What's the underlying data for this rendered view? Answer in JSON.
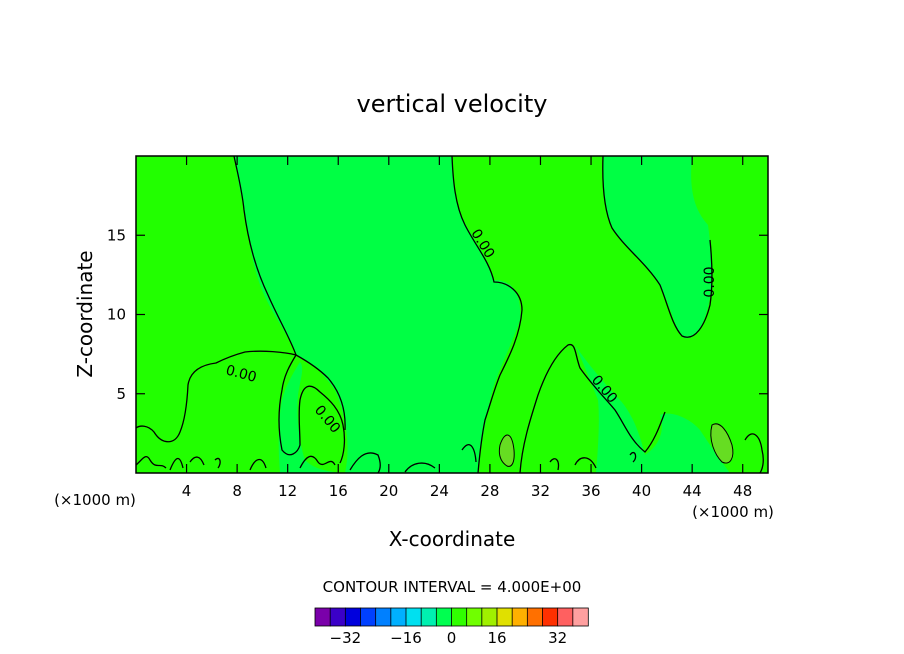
{
  "chart_data": {
    "type": "contour",
    "title": "vertical velocity",
    "xlabel": "X-coordinate",
    "ylabel": "Z-coordinate",
    "x_unit_left": "(×1000 m)",
    "x_unit_right": "(×1000 m)",
    "xlim": [
      0,
      50
    ],
    "ylim": [
      0,
      20
    ],
    "xticks": [
      4,
      8,
      12,
      16,
      20,
      24,
      28,
      32,
      36,
      40,
      44,
      48
    ],
    "yticks": [
      5,
      10,
      15
    ],
    "contour_interval_text": "CONTOUR INTERVAL = 4.000E+00",
    "contour_labels": [
      "0.00",
      "0.00",
      "0.00",
      "0.00",
      "0.00"
    ],
    "colorbar": {
      "tick_labels": [
        "−32",
        "−16",
        "0",
        "16",
        "32"
      ],
      "colors": [
        "#7a00aa",
        "#3b00c8",
        "#0000dd",
        "#0040ff",
        "#0080ff",
        "#00b0ff",
        "#00e0f0",
        "#00f0b0",
        "#00ff50",
        "#30ff00",
        "#70ff00",
        "#a0f000",
        "#e0e000",
        "#ffb000",
        "#ff7000",
        "#ff3000",
        "#ff6060",
        "#ffa0a0"
      ]
    },
    "field_colors": {
      "positive": "#22ff00",
      "negative": "#00ff44",
      "strong_positive": "#66dd22"
    }
  }
}
